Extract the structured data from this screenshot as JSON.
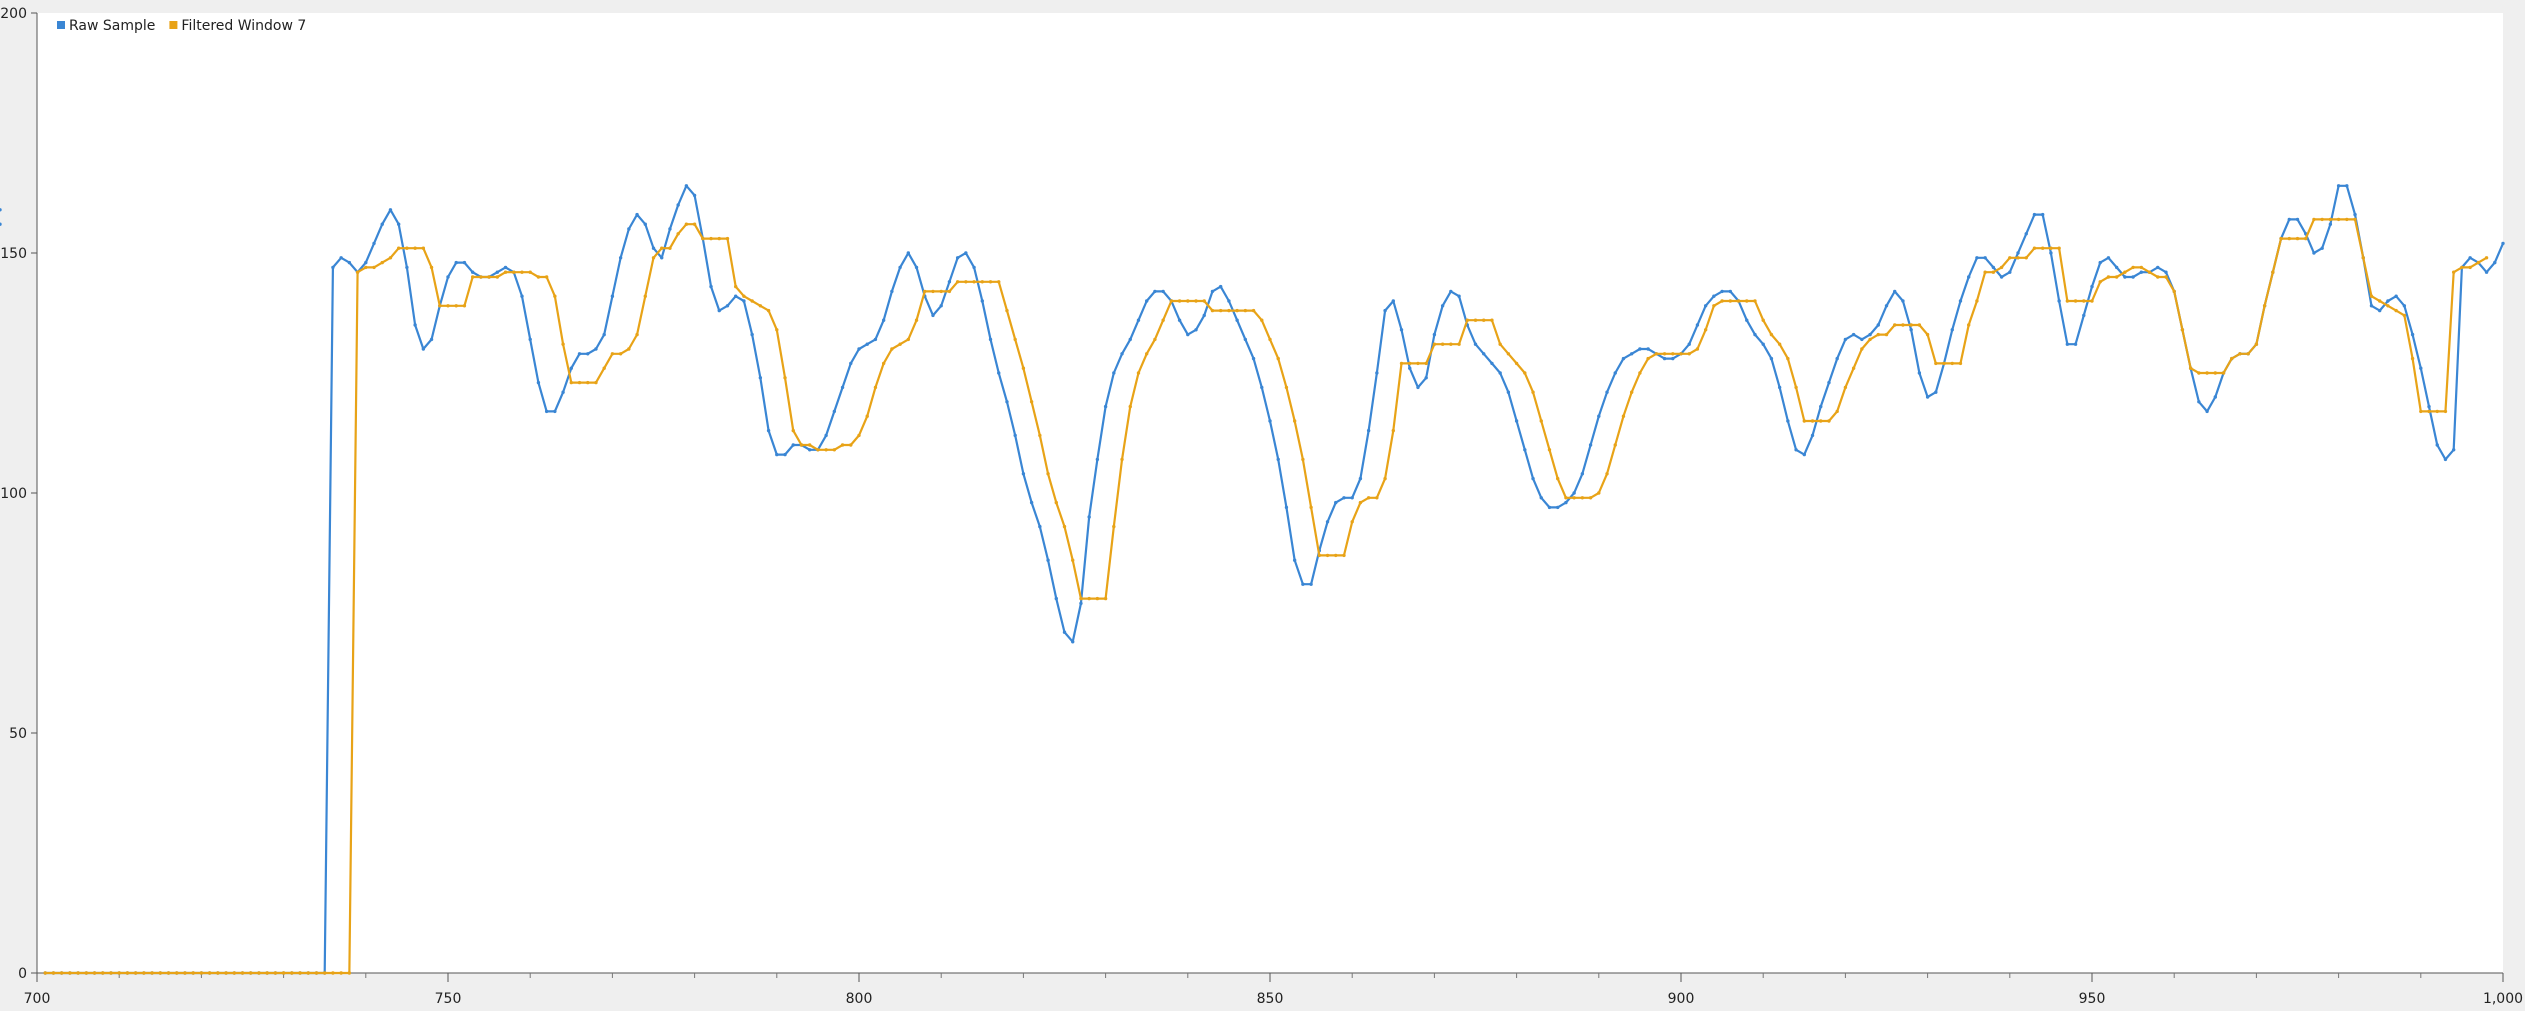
{
  "chart_data": {
    "type": "line",
    "title": "",
    "xlabel": "",
    "ylabel": "",
    "xlim": [
      700,
      1000
    ],
    "ylim": [
      0,
      200
    ],
    "x_ticks": [
      700,
      750,
      800,
      850,
      900,
      950,
      1000
    ],
    "x_tick_labels": [
      "700",
      "750",
      "800",
      "850",
      "900",
      "950",
      "1,000"
    ],
    "y_ticks": [
      0,
      50,
      100,
      150,
      200
    ],
    "y_tick_labels": [
      "0",
      "50",
      "100",
      "150",
      "200"
    ],
    "grid": false,
    "legend": {
      "position": "top-left"
    },
    "x": {
      "start": 701,
      "step": 1,
      "count": 300
    },
    "series": [
      {
        "name": "Raw Sample",
        "color": "#3a86d4",
        "values": [
          0,
          0,
          0,
          0,
          0,
          0,
          0,
          0,
          0,
          0,
          0,
          0,
          0,
          0,
          0,
          0,
          0,
          0,
          0,
          0,
          0,
          0,
          0,
          0,
          0,
          0,
          0,
          0,
          0,
          0,
          0,
          0,
          0,
          0,
          0,
          147,
          149,
          148,
          146,
          148,
          152,
          156,
          159,
          156,
          147,
          135,
          130,
          132,
          139,
          145,
          148,
          148,
          146,
          145,
          145,
          146,
          147,
          146,
          141,
          132,
          123,
          117,
          117,
          121,
          126,
          129,
          129,
          130,
          133,
          141,
          149,
          155,
          158,
          156,
          151,
          149,
          155,
          160,
          164,
          162,
          153,
          143,
          138,
          139,
          141,
          140,
          133,
          124,
          113,
          108,
          108,
          110,
          110,
          109,
          109,
          112,
          117,
          122,
          127,
          130,
          131,
          132,
          136,
          142,
          147,
          150,
          147,
          141,
          137,
          139,
          144,
          149,
          150,
          147,
          140,
          132,
          125,
          119,
          112,
          104,
          98,
          93,
          86,
          78,
          71,
          69,
          77,
          95,
          107,
          118,
          125,
          129,
          132,
          136,
          140,
          142,
          142,
          140,
          136,
          133,
          134,
          137,
          142,
          143,
          140,
          136,
          132,
          128,
          122,
          115,
          107,
          97,
          86,
          81,
          81,
          88,
          94,
          98,
          99,
          99,
          103,
          113,
          125,
          138,
          140,
          134,
          126,
          122,
          124,
          133,
          139,
          142,
          141,
          135,
          131,
          129,
          127,
          125,
          121,
          115,
          109,
          103,
          99,
          97,
          97,
          98,
          100,
          104,
          110,
          116,
          121,
          125,
          128,
          129,
          130,
          130,
          129,
          128,
          128,
          129,
          131,
          135,
          139,
          141,
          142,
          142,
          140,
          136,
          133,
          131,
          128,
          122,
          115,
          109,
          108,
          112,
          118,
          123,
          128,
          132,
          133,
          132,
          133,
          135,
          139,
          142,
          140,
          134,
          125,
          120,
          121,
          127,
          134,
          140,
          145,
          149,
          149,
          147,
          145,
          146,
          150,
          154,
          158,
          158,
          150,
          140,
          131,
          131,
          137,
          143,
          148,
          149,
          147,
          145,
          145,
          146,
          146,
          147,
          146,
          142,
          134,
          126,
          119,
          117,
          120,
          125,
          128,
          129,
          129,
          131,
          139,
          146,
          153,
          157,
          157,
          154,
          150,
          151,
          156,
          164,
          164,
          158,
          149,
          139,
          138,
          140,
          141,
          139,
          133,
          126,
          118,
          110,
          107,
          109,
          147,
          149,
          148,
          146,
          148,
          152,
          156,
          159
        ]
      },
      {
        "name": "Filtered Window 7",
        "color": "#e8a317",
        "values": [
          0,
          0,
          0,
          0,
          0,
          0,
          0,
          0,
          0,
          0,
          0,
          0,
          0,
          0,
          0,
          0,
          0,
          0,
          0,
          0,
          0,
          0,
          0,
          0,
          0,
          0,
          0,
          0,
          0,
          0,
          0,
          0,
          0,
          0,
          0,
          0,
          0,
          0,
          146,
          147,
          147,
          148,
          149,
          151,
          151,
          151,
          151,
          147,
          139,
          139,
          139,
          139,
          145,
          145,
          145,
          145,
          146,
          146,
          146,
          146,
          145,
          145,
          141,
          131,
          123,
          123,
          123,
          123,
          126,
          129,
          129,
          130,
          133,
          141,
          149,
          151,
          151,
          154,
          156,
          156,
          153,
          153,
          153,
          153,
          143,
          141,
          140,
          139,
          138,
          134,
          124,
          113,
          110,
          110,
          109,
          109,
          109,
          110,
          110,
          112,
          116,
          122,
          127,
          130,
          131,
          132,
          136,
          142,
          142,
          142,
          142,
          144,
          144,
          144,
          144,
          144,
          144,
          138,
          132,
          126,
          119,
          112,
          104,
          98,
          93,
          86,
          78,
          78,
          78,
          78,
          93,
          107,
          118,
          125,
          129,
          132,
          136,
          140,
          140,
          140,
          140,
          140,
          138,
          138,
          138,
          138,
          138,
          138,
          136,
          132,
          128,
          122,
          115,
          107,
          97,
          87,
          87,
          87,
          87,
          94,
          98,
          99,
          99,
          103,
          113,
          127,
          127,
          127,
          127,
          131,
          131,
          131,
          131,
          136,
          136,
          136,
          136,
          131,
          129,
          127,
          125,
          121,
          115,
          109,
          103,
          99,
          99,
          99,
          99,
          100,
          104,
          110,
          116,
          121,
          125,
          128,
          129,
          129,
          129,
          129,
          129,
          130,
          134,
          139,
          140,
          140,
          140,
          140,
          140,
          136,
          133,
          131,
          128,
          122,
          115,
          115,
          115,
          115,
          117,
          122,
          126,
          130,
          132,
          133,
          133,
          135,
          135,
          135,
          135,
          133,
          127,
          127,
          127,
          127,
          135,
          140,
          146,
          146,
          147,
          149,
          149,
          149,
          151,
          151,
          151,
          151,
          140,
          140,
          140,
          140,
          144,
          145,
          145,
          146,
          147,
          147,
          146,
          145,
          145,
          142,
          134,
          126,
          125,
          125,
          125,
          125,
          128,
          129,
          129,
          131,
          139,
          146,
          153,
          153,
          153,
          153,
          157,
          157,
          157,
          157,
          157,
          157,
          149,
          141,
          140,
          139,
          138,
          137,
          128,
          117,
          117,
          117,
          117,
          146,
          147,
          147,
          148,
          149
        ]
      }
    ]
  }
}
